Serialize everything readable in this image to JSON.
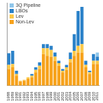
{
  "chart_data": {
    "type": "bar",
    "stacked": true,
    "legend": "upper left",
    "grid": false,
    "tick_labels": "x",
    "categories": [
      "1988",
      "1989",
      "1990",
      "1991",
      "1992",
      "1993",
      "1994",
      "1995",
      "1996",
      "1997",
      "1998",
      "1999",
      "2000",
      "2001",
      "2002",
      "2003",
      "2004",
      "2005",
      "2006",
      "2007",
      "2008",
      "2009",
      "2010",
      "2011"
    ],
    "ylim": [
      0,
      100
    ],
    "series": [
      {
        "name": "Non-Lev",
        "color": "#f7a21b",
        "values": [
          20,
          22,
          12,
          5,
          6,
          8,
          10,
          16,
          20,
          38,
          36,
          35,
          30,
          24,
          16,
          19,
          28,
          36,
          40,
          40,
          22,
          14,
          26,
          26
        ]
      },
      {
        "name": "Lev",
        "color": "#fbc94a",
        "values": [
          5,
          4,
          2,
          1,
          1,
          2,
          2,
          3,
          4,
          7,
          9,
          8,
          5,
          3,
          2,
          3,
          4,
          6,
          8,
          10,
          3,
          2,
          4,
          4
        ]
      },
      {
        "name": "LBOs",
        "color": "#2b82c9",
        "values": [
          14,
          16,
          4,
          0,
          0,
          0,
          2,
          3,
          4,
          5,
          5,
          5,
          5,
          3,
          2,
          3,
          8,
          20,
          42,
          45,
          5,
          2,
          8,
          5
        ]
      },
      {
        "name": "3Q Pipeline",
        "color": "#8fc6ea",
        "values": [
          0,
          0,
          0,
          0,
          0,
          0,
          0,
          0,
          0,
          0,
          0,
          0,
          0,
          0,
          0,
          0,
          0,
          0,
          0,
          0,
          0,
          0,
          0,
          5
        ]
      }
    ]
  }
}
